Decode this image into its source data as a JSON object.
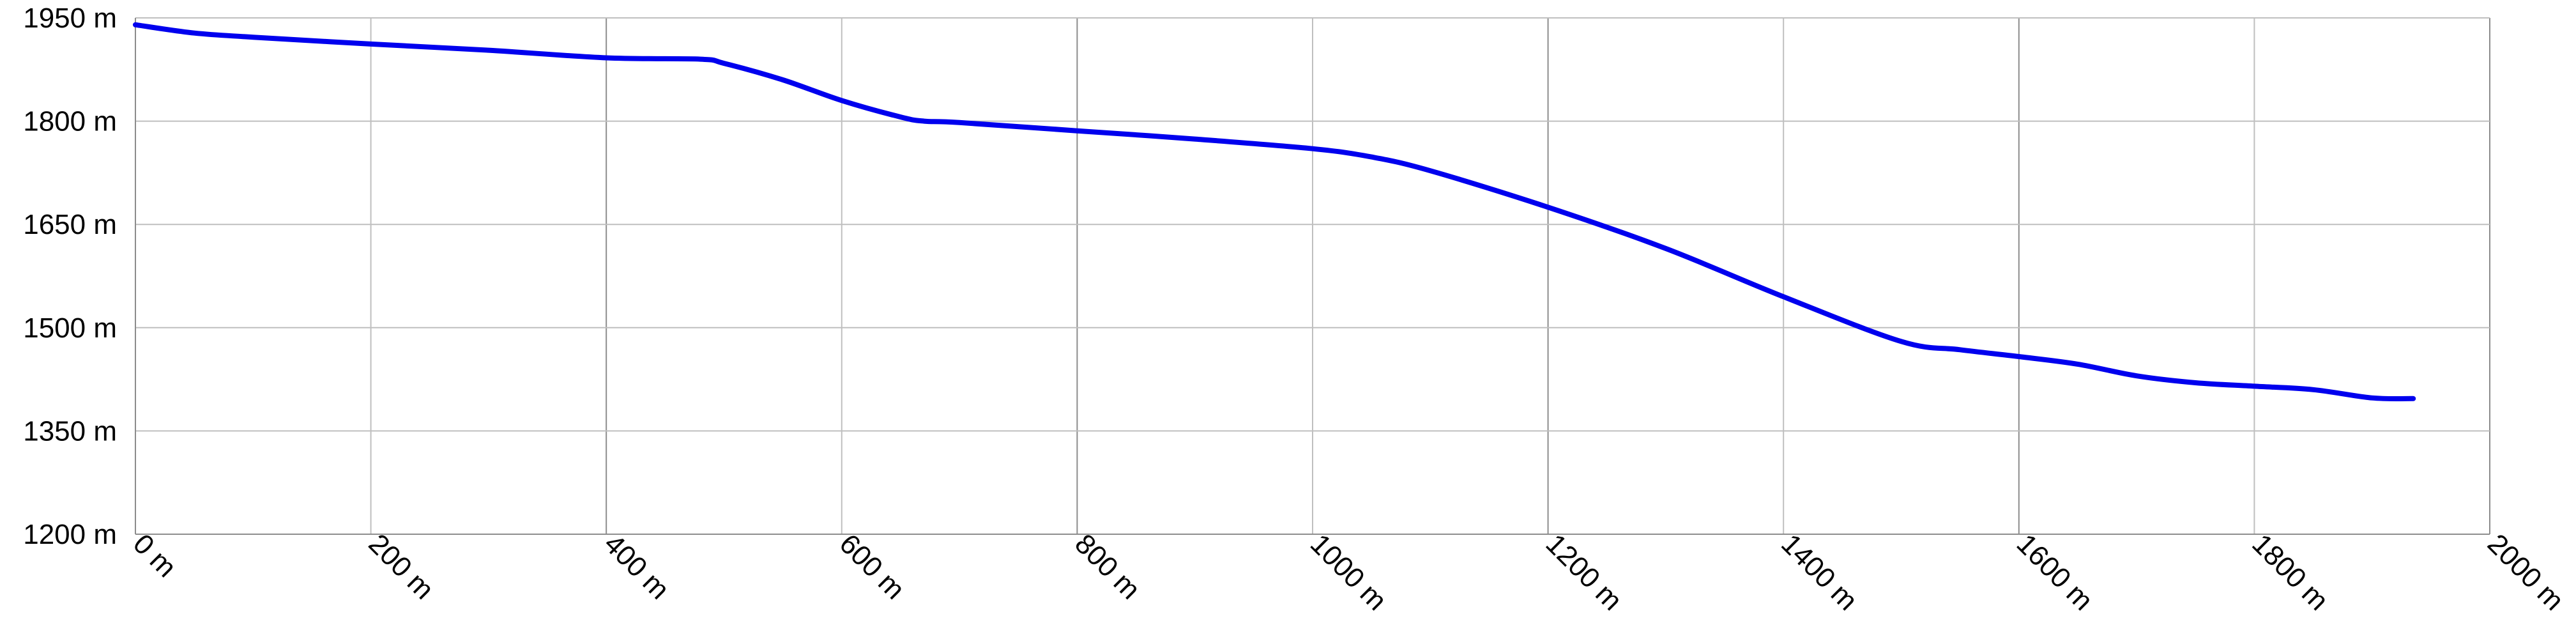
{
  "chart_data": {
    "type": "line",
    "title": "",
    "xlabel": "",
    "ylabel": "",
    "x_unit": "m",
    "y_unit": "m",
    "xlim": [
      0,
      2000
    ],
    "ylim": [
      1200,
      1950
    ],
    "x_ticks": [
      0,
      200,
      400,
      600,
      800,
      1000,
      1200,
      1400,
      1600,
      1800,
      2000
    ],
    "y_ticks": [
      1200,
      1350,
      1500,
      1650,
      1800,
      1950
    ],
    "x_tick_labels": [
      "0 m",
      "200 m",
      "400 m",
      "600 m",
      "800 m",
      "1000 m",
      "1200 m",
      "1400 m",
      "1600 m",
      "1800 m",
      "2000 m"
    ],
    "y_tick_labels": [
      "1200 m",
      "1350 m",
      "1500 m",
      "1650 m",
      "1800 m",
      "1950 m"
    ],
    "grid": true,
    "legend": "none",
    "line_color": "#0000ee",
    "series": [
      {
        "x": [
          0,
          50,
          100,
          200,
          300,
          400,
          480,
          500,
          550,
          600,
          650,
          670,
          700,
          800,
          900,
          1000,
          1050,
          1100,
          1200,
          1300,
          1400,
          1500,
          1550,
          1600,
          1650,
          1700,
          1750,
          1800,
          1850,
          1900,
          1935
        ],
        "y": [
          1940,
          1928,
          1922,
          1912,
          1903,
          1892,
          1890,
          1884,
          1860,
          1830,
          1806,
          1800,
          1798,
          1786,
          1774,
          1760,
          1748,
          1728,
          1675,
          1615,
          1545,
          1480,
          1468,
          1458,
          1447,
          1430,
          1420,
          1415,
          1410,
          1398,
          1397
        ]
      }
    ]
  }
}
